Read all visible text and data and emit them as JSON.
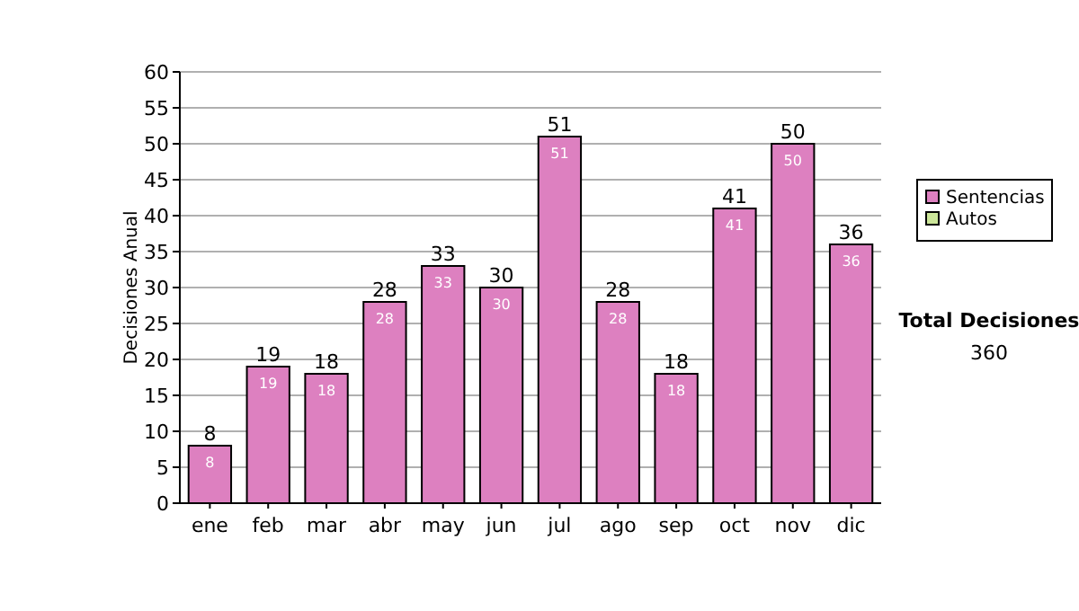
{
  "chart_data": {
    "type": "bar",
    "ylabel": "Decisiones Anual",
    "categories": [
      "ene",
      "feb",
      "mar",
      "abr",
      "may",
      "jun",
      "jul",
      "ago",
      "sep",
      "oct",
      "nov",
      "dic"
    ],
    "series": [
      {
        "name": "Sentencias",
        "color": "#dd80c0",
        "values": [
          8,
          19,
          18,
          28,
          33,
          30,
          51,
          28,
          18,
          41,
          50,
          36
        ],
        "value_labels": [
          "8",
          "19",
          "18",
          "28",
          "33",
          "30",
          "51",
          "28",
          "18",
          "41",
          "50",
          "36"
        ]
      },
      {
        "name": "Autos",
        "color": "#cce699",
        "values": [
          null,
          null,
          null,
          null,
          null,
          null,
          null,
          null,
          null,
          null,
          null,
          null
        ]
      }
    ],
    "ylim": [
      0,
      60
    ],
    "yticks": [
      0,
      5,
      10,
      15,
      20,
      25,
      30,
      35,
      40,
      45,
      50,
      55,
      60
    ],
    "grid": "y",
    "legend": "right",
    "totals": [
      "8",
      "19",
      "18",
      "28",
      "33",
      "30",
      "51",
      "28",
      "18",
      "41",
      "50",
      "36"
    ],
    "annotations": [
      "Total Decisiones",
      "360"
    ]
  }
}
